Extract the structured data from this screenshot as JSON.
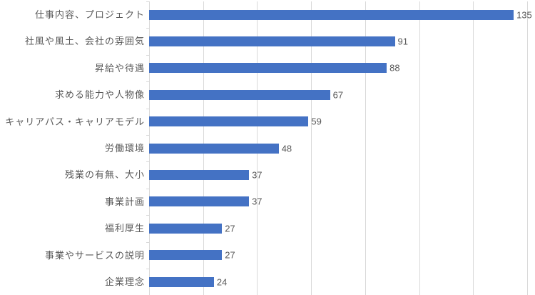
{
  "chart_data": {
    "type": "bar",
    "orientation": "horizontal",
    "title": "",
    "xlabel": "",
    "ylabel": "",
    "categories": [
      "仕事内容、プロジェクト",
      "社風や風土、会社の雰囲気",
      "昇給や待遇",
      "求める能力や人物像",
      "キャリアパス・キャリアモデル",
      "労働環境",
      "残業の有無、大小",
      "事業計画",
      "福利厚生",
      "事業やサービスの説明",
      "企業理念"
    ],
    "values": [
      135,
      91,
      88,
      67,
      59,
      48,
      37,
      37,
      27,
      27,
      24
    ],
    "data_labels": [
      "135",
      "91",
      "88",
      "67",
      "59",
      "48",
      "37",
      "37",
      "27",
      "27",
      "24"
    ],
    "xlim": [
      0,
      140
    ],
    "gridline_interval": 20,
    "grid": true,
    "legend_position": "none",
    "bar_color": "#4472C4",
    "text_color": "#595959",
    "gridline_color": "#D9D9D9"
  }
}
